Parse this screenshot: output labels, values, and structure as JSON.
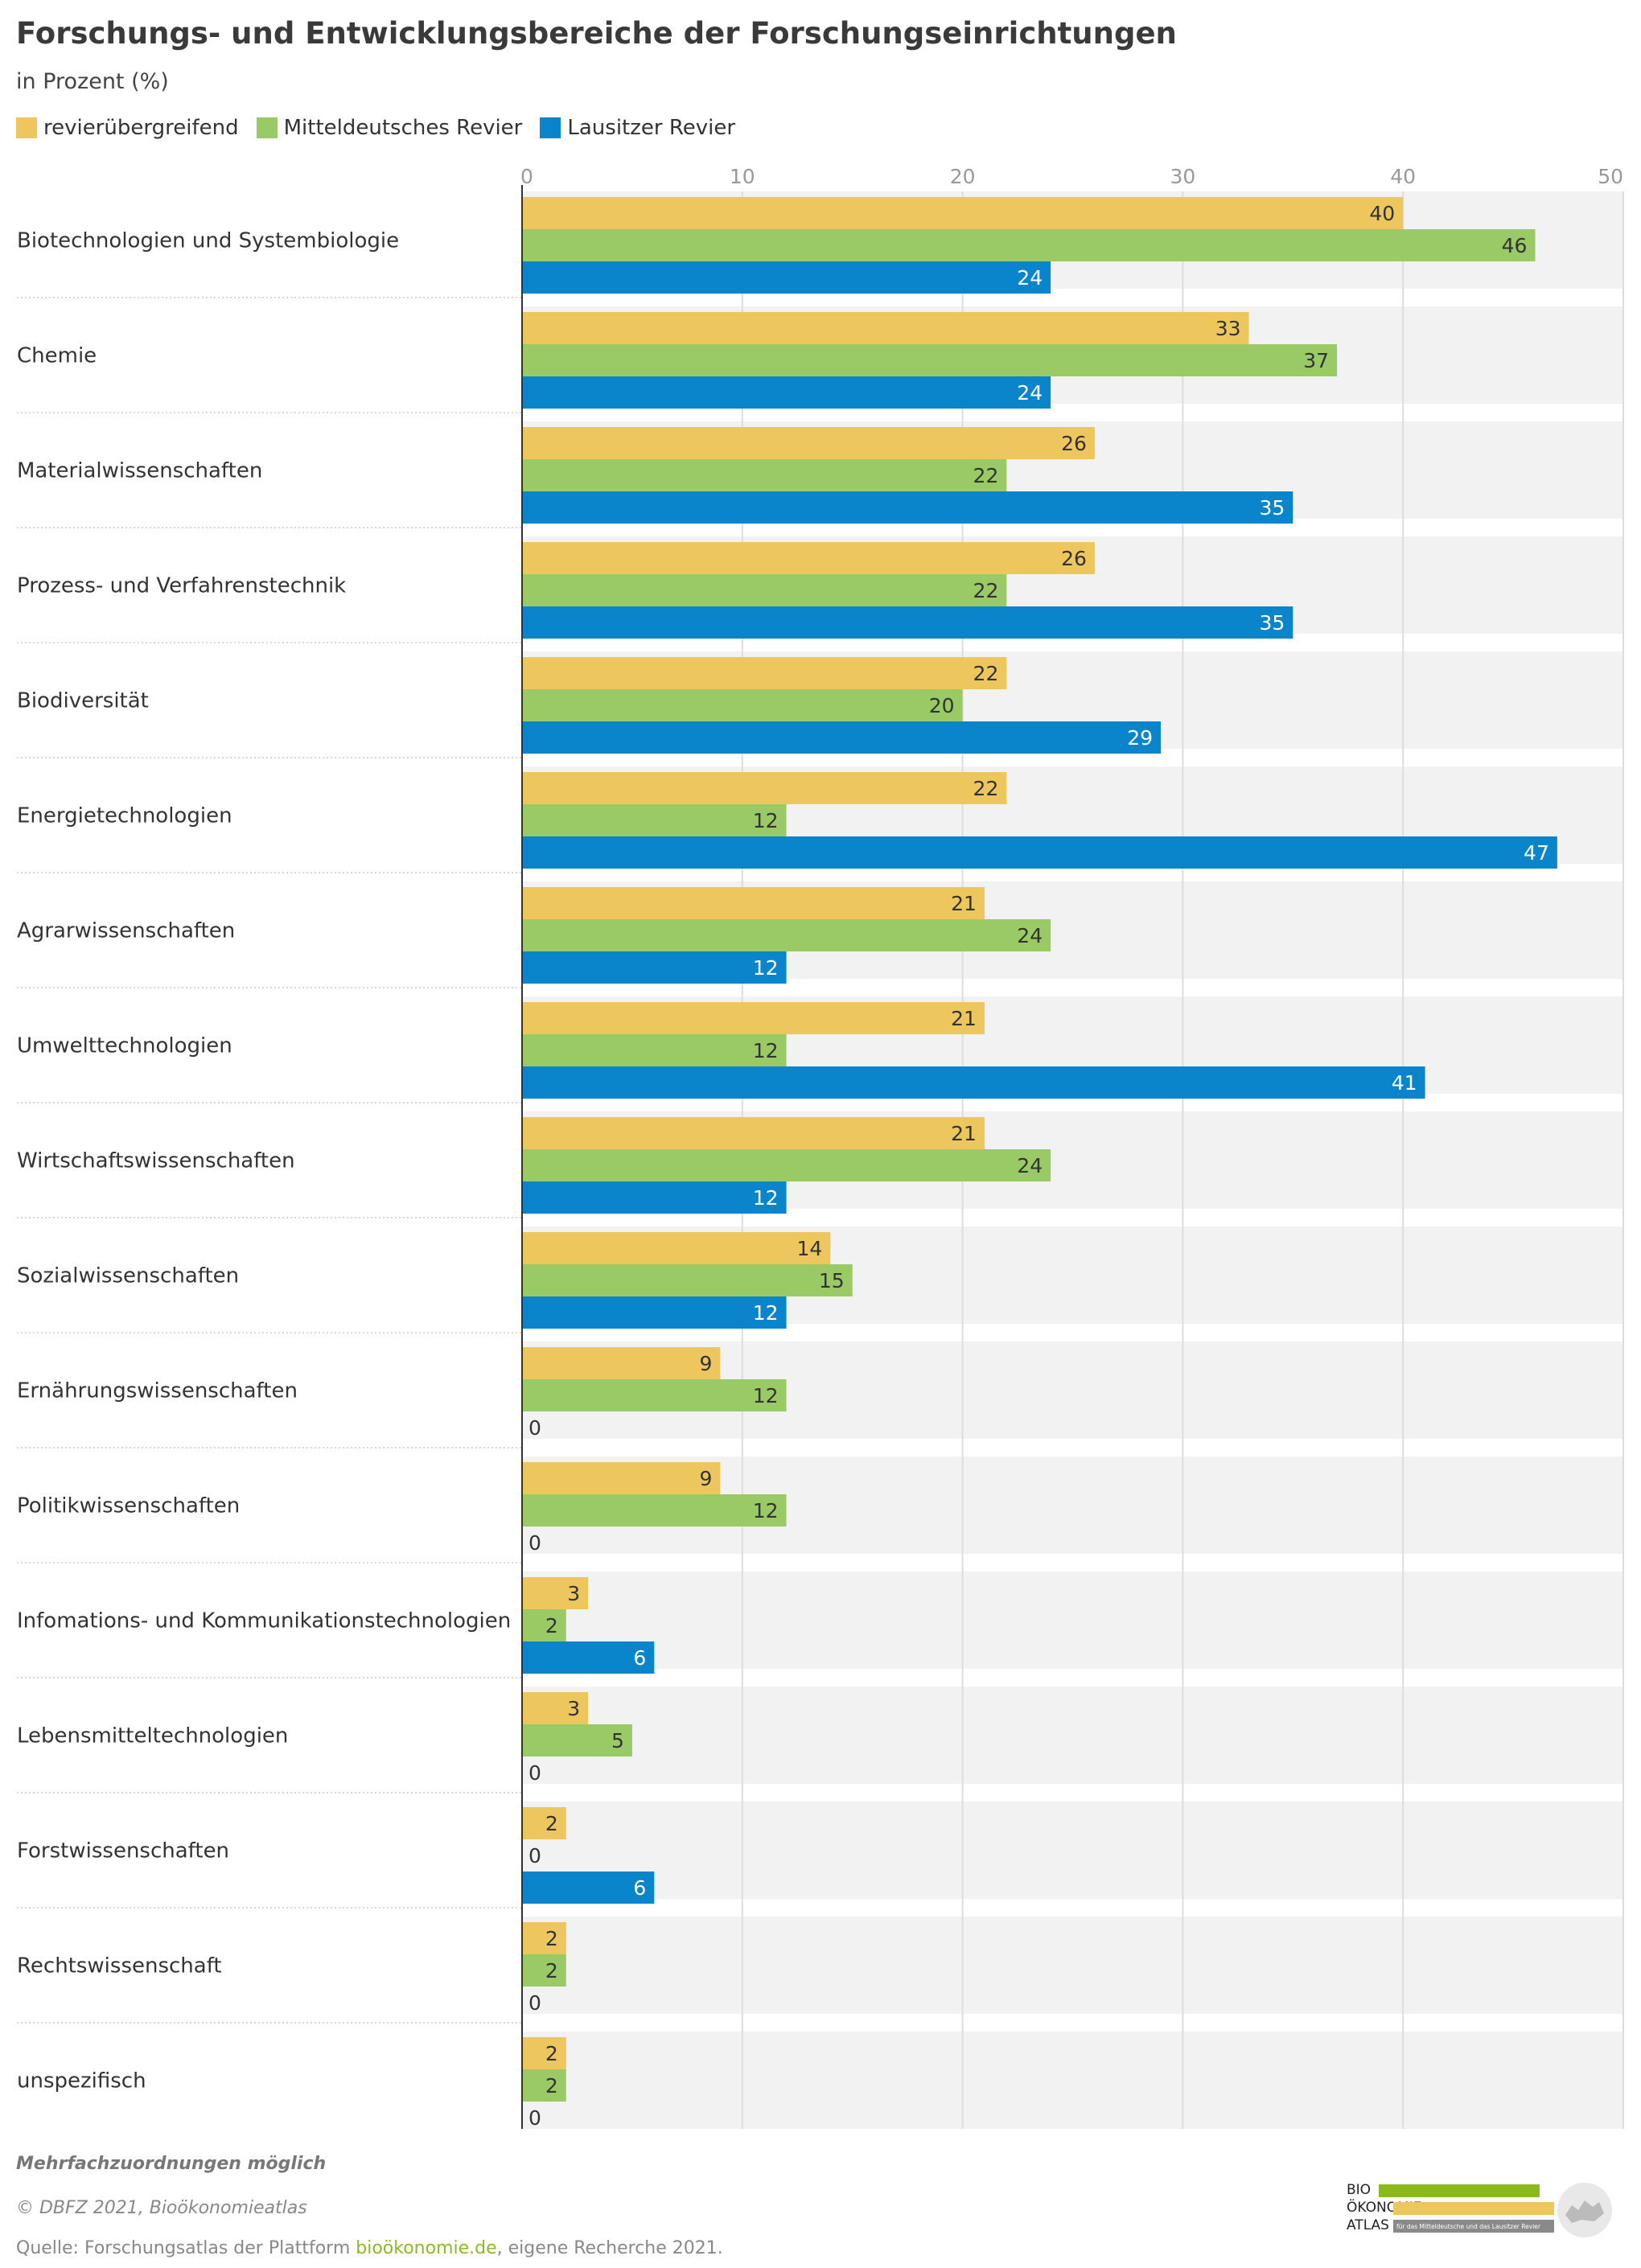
{
  "title": "Forschungs- und Entwicklungsbereiche der Forschungseinrichtungen",
  "subtitle": "in Prozent (%)",
  "legend": [
    {
      "label": "revierübergreifend",
      "color": "#eec65e"
    },
    {
      "label": "Mitteldeutsches Revier",
      "color": "#99ca66"
    },
    {
      "label": "Lausitzer Revier",
      "color": "#0a85cc"
    }
  ],
  "chart_data": {
    "type": "bar",
    "orientation": "horizontal",
    "categories": [
      "Biotechnologien und Systembiologie",
      "Chemie",
      "Materialwissenschaften",
      "Prozess- und Verfahrenstechnik",
      "Biodiversität",
      "Energietechnologien",
      "Agrarwissenschaften",
      "Umwelttechnologien",
      "Wirtschaftswissenschaften",
      "Sozialwissenschaften",
      "Ernährungswissenschaften",
      "Politikwissenschaften",
      "Infomations- und Kommunikationstechnologien",
      "Lebensmitteltechnologien",
      "Forstwissenschaften",
      "Rechtswissenschaft",
      "unspezifisch"
    ],
    "series": [
      {
        "name": "revierübergreifend",
        "color": "#eec65e",
        "values": [
          40,
          33,
          26,
          26,
          22,
          22,
          21,
          21,
          21,
          14,
          9,
          9,
          3,
          3,
          2,
          2,
          2
        ]
      },
      {
        "name": "Mitteldeutsches Revier",
        "color": "#99ca66",
        "values": [
          46,
          37,
          22,
          22,
          20,
          12,
          24,
          12,
          24,
          15,
          12,
          12,
          2,
          5,
          0,
          2,
          2
        ]
      },
      {
        "name": "Lausitzer Revier",
        "color": "#0a85cc",
        "values": [
          24,
          24,
          35,
          35,
          29,
          47,
          12,
          41,
          12,
          12,
          0,
          0,
          6,
          0,
          6,
          0,
          0
        ]
      }
    ],
    "x_ticks": [
      0,
      10,
      20,
      30,
      40,
      50
    ],
    "xlim": [
      0,
      50
    ],
    "grid": true
  },
  "footer": {
    "note": "Mehrfachzuordnungen möglich",
    "copyright": "© DBFZ 2021, Bioökonomieatlas",
    "source_prefix": "Quelle: Forschungsatlas der Plattform ",
    "source_link": "bioökonomie.de",
    "source_suffix": ", eigene Recherche 2021."
  },
  "logo": {
    "line1": "BIO",
    "line2": "ÖKONOMIE",
    "line3": "ATLAS",
    "tagline": "für das Mitteldeutsche und das Lausitzer Revier"
  }
}
